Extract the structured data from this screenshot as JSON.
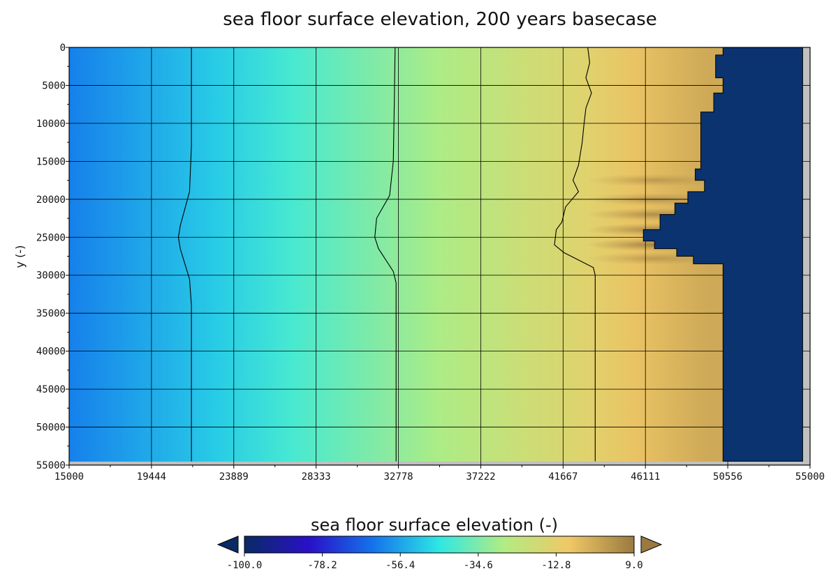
{
  "chart_data": {
    "type": "heatmap",
    "title": "sea floor surface  elevation, 200 years basecase",
    "xlabel": "",
    "ylabel": "y (-)",
    "xlim": [
      15000,
      55000
    ],
    "ylim": [
      0,
      55000
    ],
    "y_axis_inverted": true,
    "x_ticks": [
      "15000",
      "19444",
      "23889",
      "28333",
      "32778",
      "37222",
      "41667",
      "46111",
      "50556",
      "55000"
    ],
    "y_ticks": [
      "0",
      "5000",
      "10000",
      "15000",
      "20000",
      "25000",
      "30000",
      "35000",
      "40000",
      "45000",
      "50000",
      "55000"
    ],
    "grid": true,
    "colorbar": {
      "title": "sea floor surface  elevation (-)",
      "placement": "bottom",
      "range": [
        -100.0,
        9.0
      ],
      "tick_labels": [
        "-100.0",
        "-78.2",
        "-56.4",
        "-34.6",
        "-12.8",
        "9.0"
      ],
      "extend": "both",
      "colors": [
        "#0a2a66",
        "#2a10c8",
        "#1475ec",
        "#2ee8e4",
        "#b2ec82",
        "#f0c866",
        "#9a7a40"
      ]
    },
    "elevation_profile_x": [
      15000,
      19000,
      23000,
      27000,
      31000,
      35000,
      39000,
      43000,
      45500,
      49500
    ],
    "elevation_profile_z": [
      -62,
      -56,
      -50,
      -42,
      -35,
      -28,
      -21,
      -14,
      -8,
      -2
    ],
    "contours": [
      {
        "name": "",
        "points": [
          [
            21600,
            0
          ],
          [
            21600,
            13000
          ],
          [
            21500,
            19000
          ],
          [
            21000,
            23500
          ],
          [
            20900,
            25000
          ],
          [
            21000,
            26500
          ],
          [
            21500,
            30500
          ],
          [
            21600,
            34000
          ],
          [
            21600,
            54500
          ]
        ]
      },
      {
        "name": "",
        "points": [
          [
            32600,
            0
          ],
          [
            32550,
            8000
          ],
          [
            32500,
            15000
          ],
          [
            32300,
            19500
          ],
          [
            31600,
            22500
          ],
          [
            31500,
            25000
          ],
          [
            31700,
            26500
          ],
          [
            32500,
            29500
          ],
          [
            32650,
            31000
          ],
          [
            32650,
            54500
          ]
        ]
      },
      {
        "name": "",
        "points": [
          [
            43000,
            0
          ],
          [
            43100,
            2000
          ],
          [
            42900,
            4000
          ],
          [
            43200,
            6000
          ],
          [
            42900,
            8000
          ],
          [
            42800,
            10000
          ],
          [
            42700,
            12500
          ],
          [
            42500,
            15500
          ],
          [
            42200,
            17500
          ],
          [
            42500,
            19000
          ],
          [
            41800,
            21000
          ],
          [
            41600,
            23000
          ],
          [
            41300,
            24000
          ],
          [
            41200,
            26000
          ],
          [
            41700,
            27000
          ],
          [
            42500,
            28000
          ],
          [
            43300,
            29000
          ],
          [
            43400,
            30000
          ],
          [
            43400,
            54500
          ]
        ]
      }
    ],
    "land_boundary": {
      "x_points": [
        50300,
        50300,
        49900,
        49900,
        50300,
        50300,
        49800,
        49800,
        49100,
        49100,
        48800,
        48800,
        49300,
        49300,
        48400,
        48400,
        47700,
        47700,
        46900,
        46900,
        46000,
        46000,
        46600,
        46600,
        47800,
        47800,
        48700,
        48700,
        50300,
        50300
      ],
      "y_points": [
        0,
        1000,
        1000,
        4000,
        4000,
        6000,
        6000,
        8500,
        8500,
        16000,
        16000,
        17500,
        17500,
        19000,
        19000,
        20500,
        20500,
        22000,
        22000,
        24000,
        24000,
        25500,
        25500,
        26500,
        26500,
        27500,
        27500,
        28500,
        28500,
        54500
      ],
      "right_edge_x": 54600,
      "bottom_y": 54500,
      "fill": "#0a3370"
    },
    "ripples": [
      {
        "y": 17500,
        "strength": 0.6
      },
      {
        "y": 20000,
        "strength": 0.7
      },
      {
        "y": 22000,
        "strength": 0.8
      },
      {
        "y": 24000,
        "strength": 0.9
      },
      {
        "y": 26000,
        "strength": 1.0
      },
      {
        "y": 27800,
        "strength": 0.6
      }
    ],
    "out_of_domain_fill": "#c0c0c0"
  }
}
